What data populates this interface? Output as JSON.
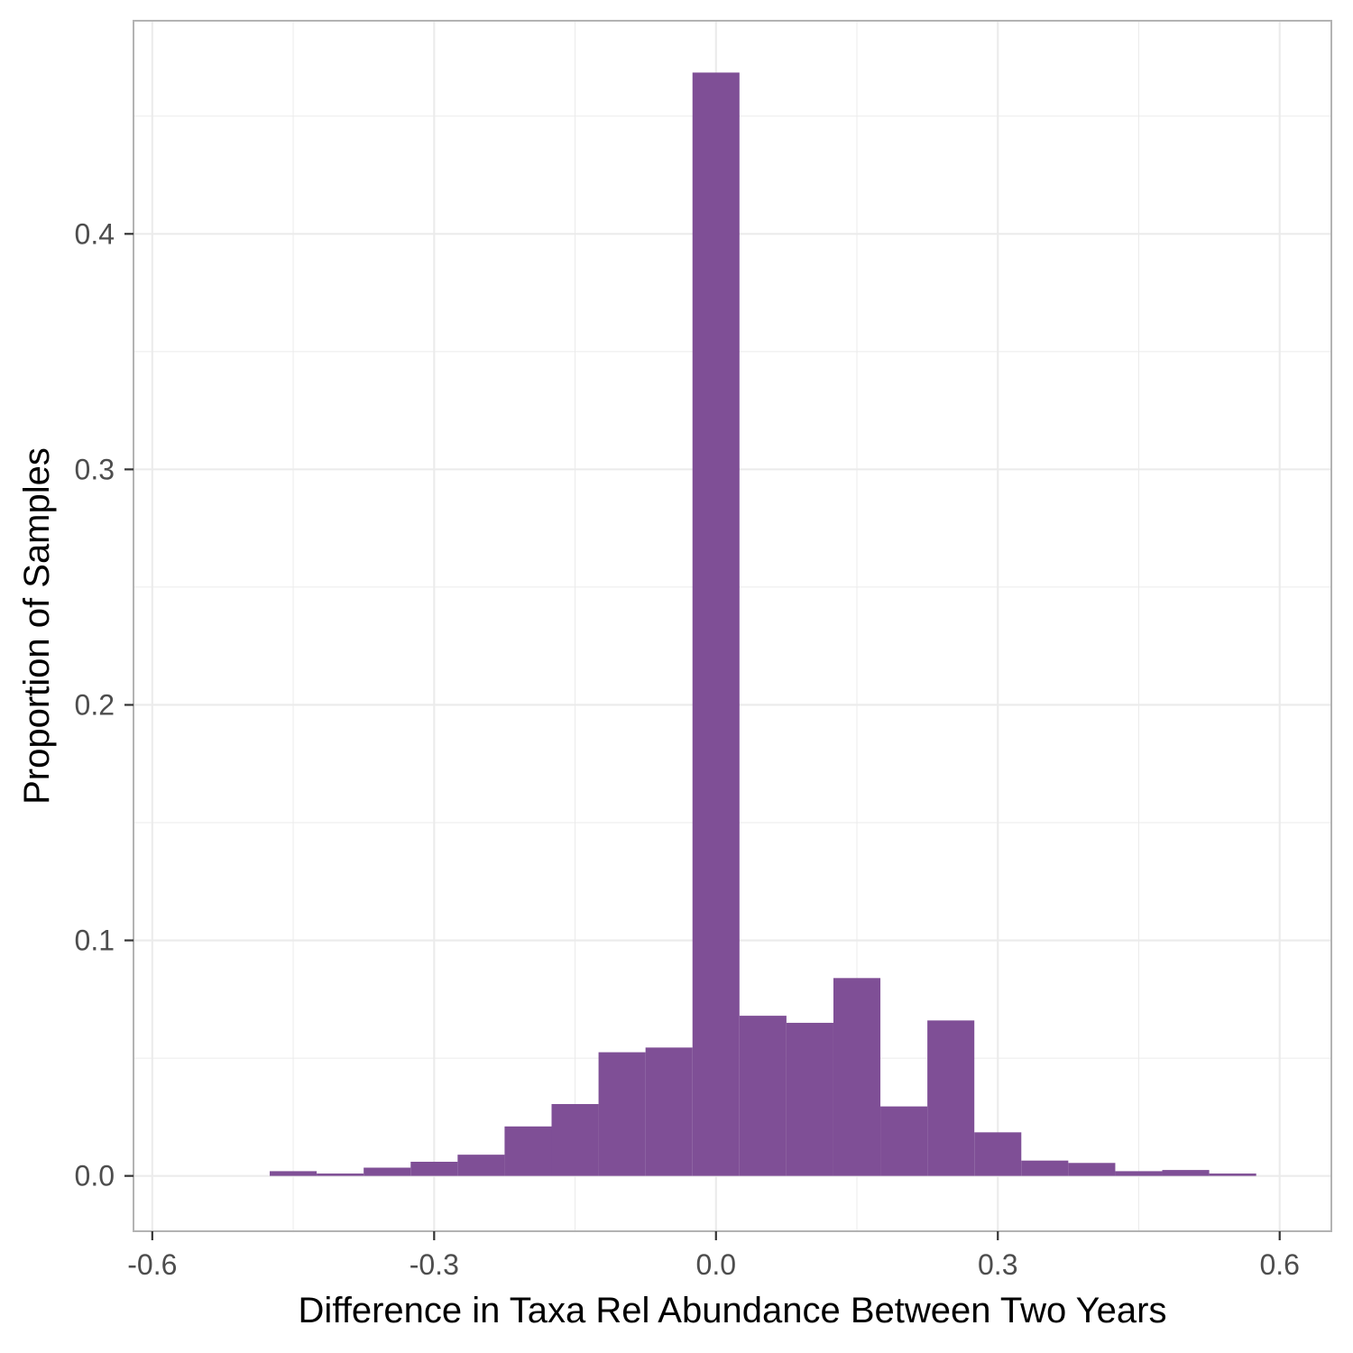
{
  "chart_data": {
    "type": "bar",
    "subtype": "histogram",
    "xlabel": "Difference in Taxa Rel Abundance Between Two Years",
    "ylabel": "Proportion of Samples",
    "xlim": [
      -0.62,
      0.655
    ],
    "ylim": [
      -0.0235,
      0.4905
    ],
    "x_ticks": [
      -0.6,
      -0.3,
      0.0,
      0.3,
      0.6
    ],
    "x_tick_labels": [
      "-0.6",
      "-0.3",
      "0.0",
      "0.3",
      "0.6"
    ],
    "y_ticks": [
      0.0,
      0.1,
      0.2,
      0.3,
      0.4
    ],
    "y_tick_labels": [
      "0.0",
      "0.1",
      "0.2",
      "0.3",
      "0.4"
    ],
    "grid": true,
    "bar_color": "#7f4f96",
    "bins": [
      {
        "x_start": -0.475,
        "x_end": -0.425,
        "value": 0.002
      },
      {
        "x_start": -0.425,
        "x_end": -0.375,
        "value": 0.001
      },
      {
        "x_start": -0.375,
        "x_end": -0.325,
        "value": 0.0035
      },
      {
        "x_start": -0.325,
        "x_end": -0.275,
        "value": 0.006
      },
      {
        "x_start": -0.275,
        "x_end": -0.225,
        "value": 0.009
      },
      {
        "x_start": -0.225,
        "x_end": -0.175,
        "value": 0.021
      },
      {
        "x_start": -0.175,
        "x_end": -0.125,
        "value": 0.0305
      },
      {
        "x_start": -0.125,
        "x_end": -0.075,
        "value": 0.0525
      },
      {
        "x_start": -0.075,
        "x_end": -0.025,
        "value": 0.0545
      },
      {
        "x_start": -0.025,
        "x_end": 0.025,
        "value": 0.4685
      },
      {
        "x_start": 0.025,
        "x_end": 0.075,
        "value": 0.068
      },
      {
        "x_start": 0.075,
        "x_end": 0.125,
        "value": 0.065
      },
      {
        "x_start": 0.125,
        "x_end": 0.175,
        "value": 0.084
      },
      {
        "x_start": 0.175,
        "x_end": 0.225,
        "value": 0.0295
      },
      {
        "x_start": 0.225,
        "x_end": 0.275,
        "value": 0.066
      },
      {
        "x_start": 0.275,
        "x_end": 0.325,
        "value": 0.0185
      },
      {
        "x_start": 0.325,
        "x_end": 0.375,
        "value": 0.0065
      },
      {
        "x_start": 0.375,
        "x_end": 0.425,
        "value": 0.0055
      },
      {
        "x_start": 0.425,
        "x_end": 0.475,
        "value": 0.002
      },
      {
        "x_start": 0.475,
        "x_end": 0.525,
        "value": 0.0025
      },
      {
        "x_start": 0.525,
        "x_end": 0.575,
        "value": 0.001
      }
    ]
  }
}
